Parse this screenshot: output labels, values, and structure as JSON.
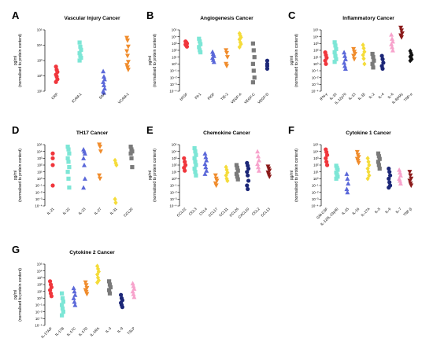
{
  "figure": {
    "y_label_line1": "pg/ml",
    "y_label_line2": "(normalised to protein content)"
  },
  "colors": {
    "red": "#f0363c",
    "cyan": "#7de6d6",
    "blue": "#5b68d9",
    "orange": "#f08c2c",
    "yellow": "#f5dc3a",
    "grey": "#7a7a7a",
    "navy": "#1c2778",
    "pink": "#f7a3cc",
    "darkred": "#8b1a1a",
    "black": "#111111"
  },
  "chart_data": [
    {
      "panel": "A",
      "title": "Vascular Injury Cancer",
      "type": "scatter",
      "ylim_log10": [
        1,
        5
      ],
      "categories": [
        {
          "label": "CRP",
          "color": "red",
          "marker": "circle",
          "values": [
            400,
            250,
            180,
            120,
            90,
            60,
            40
          ]
        },
        {
          "label": "ICAM-1",
          "color": "cyan",
          "marker": "square",
          "values": [
            15000,
            8000,
            5000,
            3000,
            2000,
            1500,
            1000
          ]
        },
        {
          "label": "SAA",
          "color": "blue",
          "marker": "triangle-up",
          "values": [
            200,
            90,
            60,
            40,
            25,
            15,
            10,
            8
          ]
        },
        {
          "label": "VCAM-1",
          "color": "orange",
          "marker": "triangle-down",
          "values": [
            30000,
            20000,
            8000,
            4000,
            2000,
            800,
            500,
            350,
            250
          ]
        }
      ]
    },
    {
      "panel": "B",
      "title": "Angiogenesis Cancer",
      "type": "scatter",
      "ylim_log10": [
        -4,
        5
      ],
      "categories": [
        {
          "label": "bFGF",
          "color": "red",
          "marker": "circle",
          "values": [
            2000,
            1500,
            1000,
            700,
            500,
            350
          ]
        },
        {
          "label": "Flt-1",
          "color": "cyan",
          "marker": "square",
          "values": [
            5000,
            2000,
            800,
            300,
            100,
            50
          ]
        },
        {
          "label": "PlGF",
          "color": "blue",
          "marker": "triangle-up",
          "values": [
            60,
            30,
            15,
            8,
            4,
            2
          ]
        },
        {
          "label": "TIE-2",
          "color": "orange",
          "marker": "triangle-down",
          "values": [
            100,
            40,
            10,
            1,
            0.5
          ]
        },
        {
          "label": "VEGF-A",
          "color": "yellow",
          "marker": "diamond",
          "values": [
            30000,
            15000,
            8000,
            4000,
            1500,
            800,
            300
          ]
        },
        {
          "label": "VEGF-C",
          "color": "grey",
          "marker": "square",
          "values": [
            1000,
            100,
            10,
            1,
            0.1,
            0.01,
            0.002
          ]
        },
        {
          "label": "VEGF-D",
          "color": "navy",
          "marker": "circle",
          "values": [
            3,
            1,
            0.5,
            0.2
          ]
        }
      ]
    },
    {
      "panel": "C",
      "title": "Inflammatory Cancer",
      "type": "scatter",
      "ylim_log10": [
        -4,
        5
      ],
      "categories": [
        {
          "label": "IFN-γ",
          "color": "red",
          "marker": "circle",
          "values": [
            50,
            20,
            8,
            3,
            1
          ]
        },
        {
          "label": "IL-10",
          "color": "cyan",
          "marker": "square",
          "values": [
            1500,
            500,
            150,
            50,
            15,
            5,
            2
          ]
        },
        {
          "label": "IL-12p70",
          "color": "blue",
          "marker": "triangle-up",
          "values": [
            50,
            15,
            5,
            1.5,
            0.5,
            0.2
          ]
        },
        {
          "label": "IL-13",
          "color": "orange",
          "marker": "triangle-down",
          "values": [
            150,
            60,
            30,
            15,
            5
          ]
        },
        {
          "label": "IL-1β",
          "color": "yellow",
          "marker": "diamond",
          "values": [
            600,
            200,
            60,
            20,
            6,
            1
          ]
        },
        {
          "label": "IL-2",
          "color": "grey",
          "marker": "square",
          "values": [
            30,
            10,
            3,
            1,
            0.3
          ]
        },
        {
          "label": "IL-4",
          "color": "navy",
          "marker": "circle",
          "values": [
            15,
            5,
            1.5,
            0.5,
            0.2
          ]
        },
        {
          "label": "IL-6",
          "color": "pink",
          "marker": "triangle-up",
          "values": [
            20000,
            5000,
            2000,
            800,
            300,
            100
          ]
        },
        {
          "label": "IL-8(HA)",
          "color": "darkred",
          "marker": "triangle-down",
          "values": [
            200000,
            80000,
            30000,
            15000,
            8000
          ]
        },
        {
          "label": "TNF-α",
          "color": "black",
          "marker": "diamond",
          "values": [
            80,
            40,
            20,
            12,
            8,
            5,
            3
          ]
        }
      ]
    },
    {
      "panel": "D",
      "title": "TH17 Cancer",
      "type": "scatter",
      "ylim_log10": [
        -4,
        5
      ],
      "categories": [
        {
          "label": "IL-21",
          "color": "red",
          "marker": "circle",
          "values": [
            5000,
            1000,
            100,
            0.1
          ]
        },
        {
          "label": "IL-22",
          "color": "cyan",
          "marker": "square",
          "values": [
            50000,
            20000,
            5000,
            1000,
            300,
            50,
            10,
            1,
            0.05
          ]
        },
        {
          "label": "IL-23",
          "color": "blue",
          "marker": "triangle-up",
          "values": [
            20000,
            10000,
            5000,
            1000,
            100,
            1,
            0.05
          ]
        },
        {
          "label": "IL-27",
          "color": "orange",
          "marker": "triangle-down",
          "values": [
            100000,
            50000,
            10000,
            3,
            1
          ]
        },
        {
          "label": "IL-31",
          "color": "yellow",
          "marker": "diamond",
          "values": [
            500,
            200,
            100,
            0.001,
            0.0003
          ]
        },
        {
          "label": "CCL20",
          "color": "grey",
          "marker": "square",
          "values": [
            50000,
            20000,
            10000,
            5000,
            1000,
            50
          ]
        }
      ]
    },
    {
      "panel": "E",
      "title": "Chemokine Cancer",
      "type": "scatter",
      "ylim_log10": [
        -4,
        5
      ],
      "categories": [
        {
          "label": "CCL22",
          "color": "red",
          "marker": "circle",
          "values": [
            1000,
            300,
            100,
            40,
            15
          ]
        },
        {
          "label": "CCL3",
          "color": "cyan",
          "marker": "square",
          "values": [
            30000,
            10000,
            3000,
            1000,
            300,
            100,
            30,
            10,
            3
          ]
        },
        {
          "label": "CCL4",
          "color": "blue",
          "marker": "triangle-up",
          "values": [
            5000,
            1500,
            500,
            150,
            50,
            15,
            5
          ]
        },
        {
          "label": "CCL17",
          "color": "orange",
          "marker": "triangle-down",
          "values": [
            3,
            1,
            0.5,
            0.2,
            0.1
          ]
        },
        {
          "label": "CCL11",
          "color": "yellow",
          "marker": "diamond",
          "values": [
            50,
            20,
            8,
            3,
            1,
            0.5
          ]
        },
        {
          "label": "CCL26",
          "color": "grey",
          "marker": "square",
          "values": [
            100,
            40,
            15,
            5,
            2,
            0.8
          ]
        },
        {
          "label": "CXCL10",
          "color": "navy",
          "marker": "circle",
          "values": [
            200,
            80,
            30,
            10,
            3,
            0.5,
            0.1,
            0.03
          ]
        },
        {
          "label": "CCL2",
          "color": "pink",
          "marker": "triangle-up",
          "values": [
            10000,
            2000,
            500,
            150,
            50,
            15
          ]
        },
        {
          "label": "CCL13",
          "color": "darkred",
          "marker": "triangle-down",
          "values": [
            60,
            30,
            15,
            8,
            4,
            2
          ]
        }
      ]
    },
    {
      "panel": "F",
      "title": "Cytokine 1 Cancer",
      "type": "scatter",
      "ylim_log10": [
        -4,
        5
      ],
      "categories": [
        {
          "label": "GM-CSF",
          "color": "red",
          "marker": "circle",
          "values": [
            20000,
            8000,
            3000,
            1000,
            300,
            100
          ]
        },
        {
          "label": "IL-12/IL-23p40",
          "color": "cyan",
          "marker": "square",
          "values": [
            80,
            40,
            20,
            8,
            4,
            2,
            1
          ]
        },
        {
          "label": "IL-15",
          "color": "blue",
          "marker": "triangle-up",
          "values": [
            5,
            1,
            0.2,
            0.03,
            0.01
          ]
        },
        {
          "label": "IL-16",
          "color": "orange",
          "marker": "triangle-down",
          "values": [
            8000,
            3000,
            1500,
            800,
            400,
            200
          ]
        },
        {
          "label": "IL-17A",
          "color": "yellow",
          "marker": "diamond",
          "values": [
            1000,
            300,
            100,
            30,
            10,
            3,
            1
          ]
        },
        {
          "label": "IL-5",
          "color": "grey",
          "marker": "square",
          "values": [
            5000,
            2000,
            800,
            300,
            100,
            30
          ]
        },
        {
          "label": "IL-6",
          "color": "navy",
          "marker": "circle",
          "values": [
            30,
            10,
            3,
            1,
            0.3,
            0.1,
            0.05
          ]
        },
        {
          "label": "IL-7",
          "color": "pink",
          "marker": "triangle-up",
          "values": [
            20,
            8,
            3,
            1,
            0.5,
            0.2
          ]
        },
        {
          "label": "TNF-β",
          "color": "darkred",
          "marker": "triangle-down",
          "values": [
            10,
            3,
            1,
            0.5,
            0.2,
            0.1
          ]
        }
      ]
    },
    {
      "panel": "G",
      "title": "Cytokine 2 Cancer",
      "type": "scatter",
      "ylim_log10": [
        -4,
        5
      ],
      "categories": [
        {
          "label": "IL-17A/F",
          "color": "red",
          "marker": "circle",
          "values": [
            300,
            100,
            40,
            15,
            5,
            2
          ]
        },
        {
          "label": "IL-17B",
          "color": "cyan",
          "marker": "square",
          "values": [
            5,
            1,
            0.3,
            0.1,
            0.03,
            0.01,
            0.003
          ]
        },
        {
          "label": "IL-17C",
          "color": "blue",
          "marker": "triangle-up",
          "values": [
            30,
            10,
            3,
            1,
            0.3,
            0.1
          ]
        },
        {
          "label": "IL-17D",
          "color": "orange",
          "marker": "triangle-down",
          "values": [
            200,
            80,
            30,
            15,
            8,
            4
          ]
        },
        {
          "label": "IL-1RA",
          "color": "yellow",
          "marker": "diamond",
          "values": [
            50000,
            20000,
            8000,
            3000,
            1000,
            400,
            200
          ]
        },
        {
          "label": "IL-3",
          "color": "grey",
          "marker": "square",
          "values": [
            300,
            100,
            40,
            15,
            5
          ]
        },
        {
          "label": "IL-9",
          "color": "navy",
          "marker": "circle",
          "values": [
            3,
            1,
            0.5,
            0.2,
            0.1,
            0.05
          ]
        },
        {
          "label": "TSLP",
          "color": "pink",
          "marker": "triangle-up",
          "values": [
            150,
            60,
            25,
            10,
            4,
            1.5
          ]
        }
      ]
    }
  ]
}
